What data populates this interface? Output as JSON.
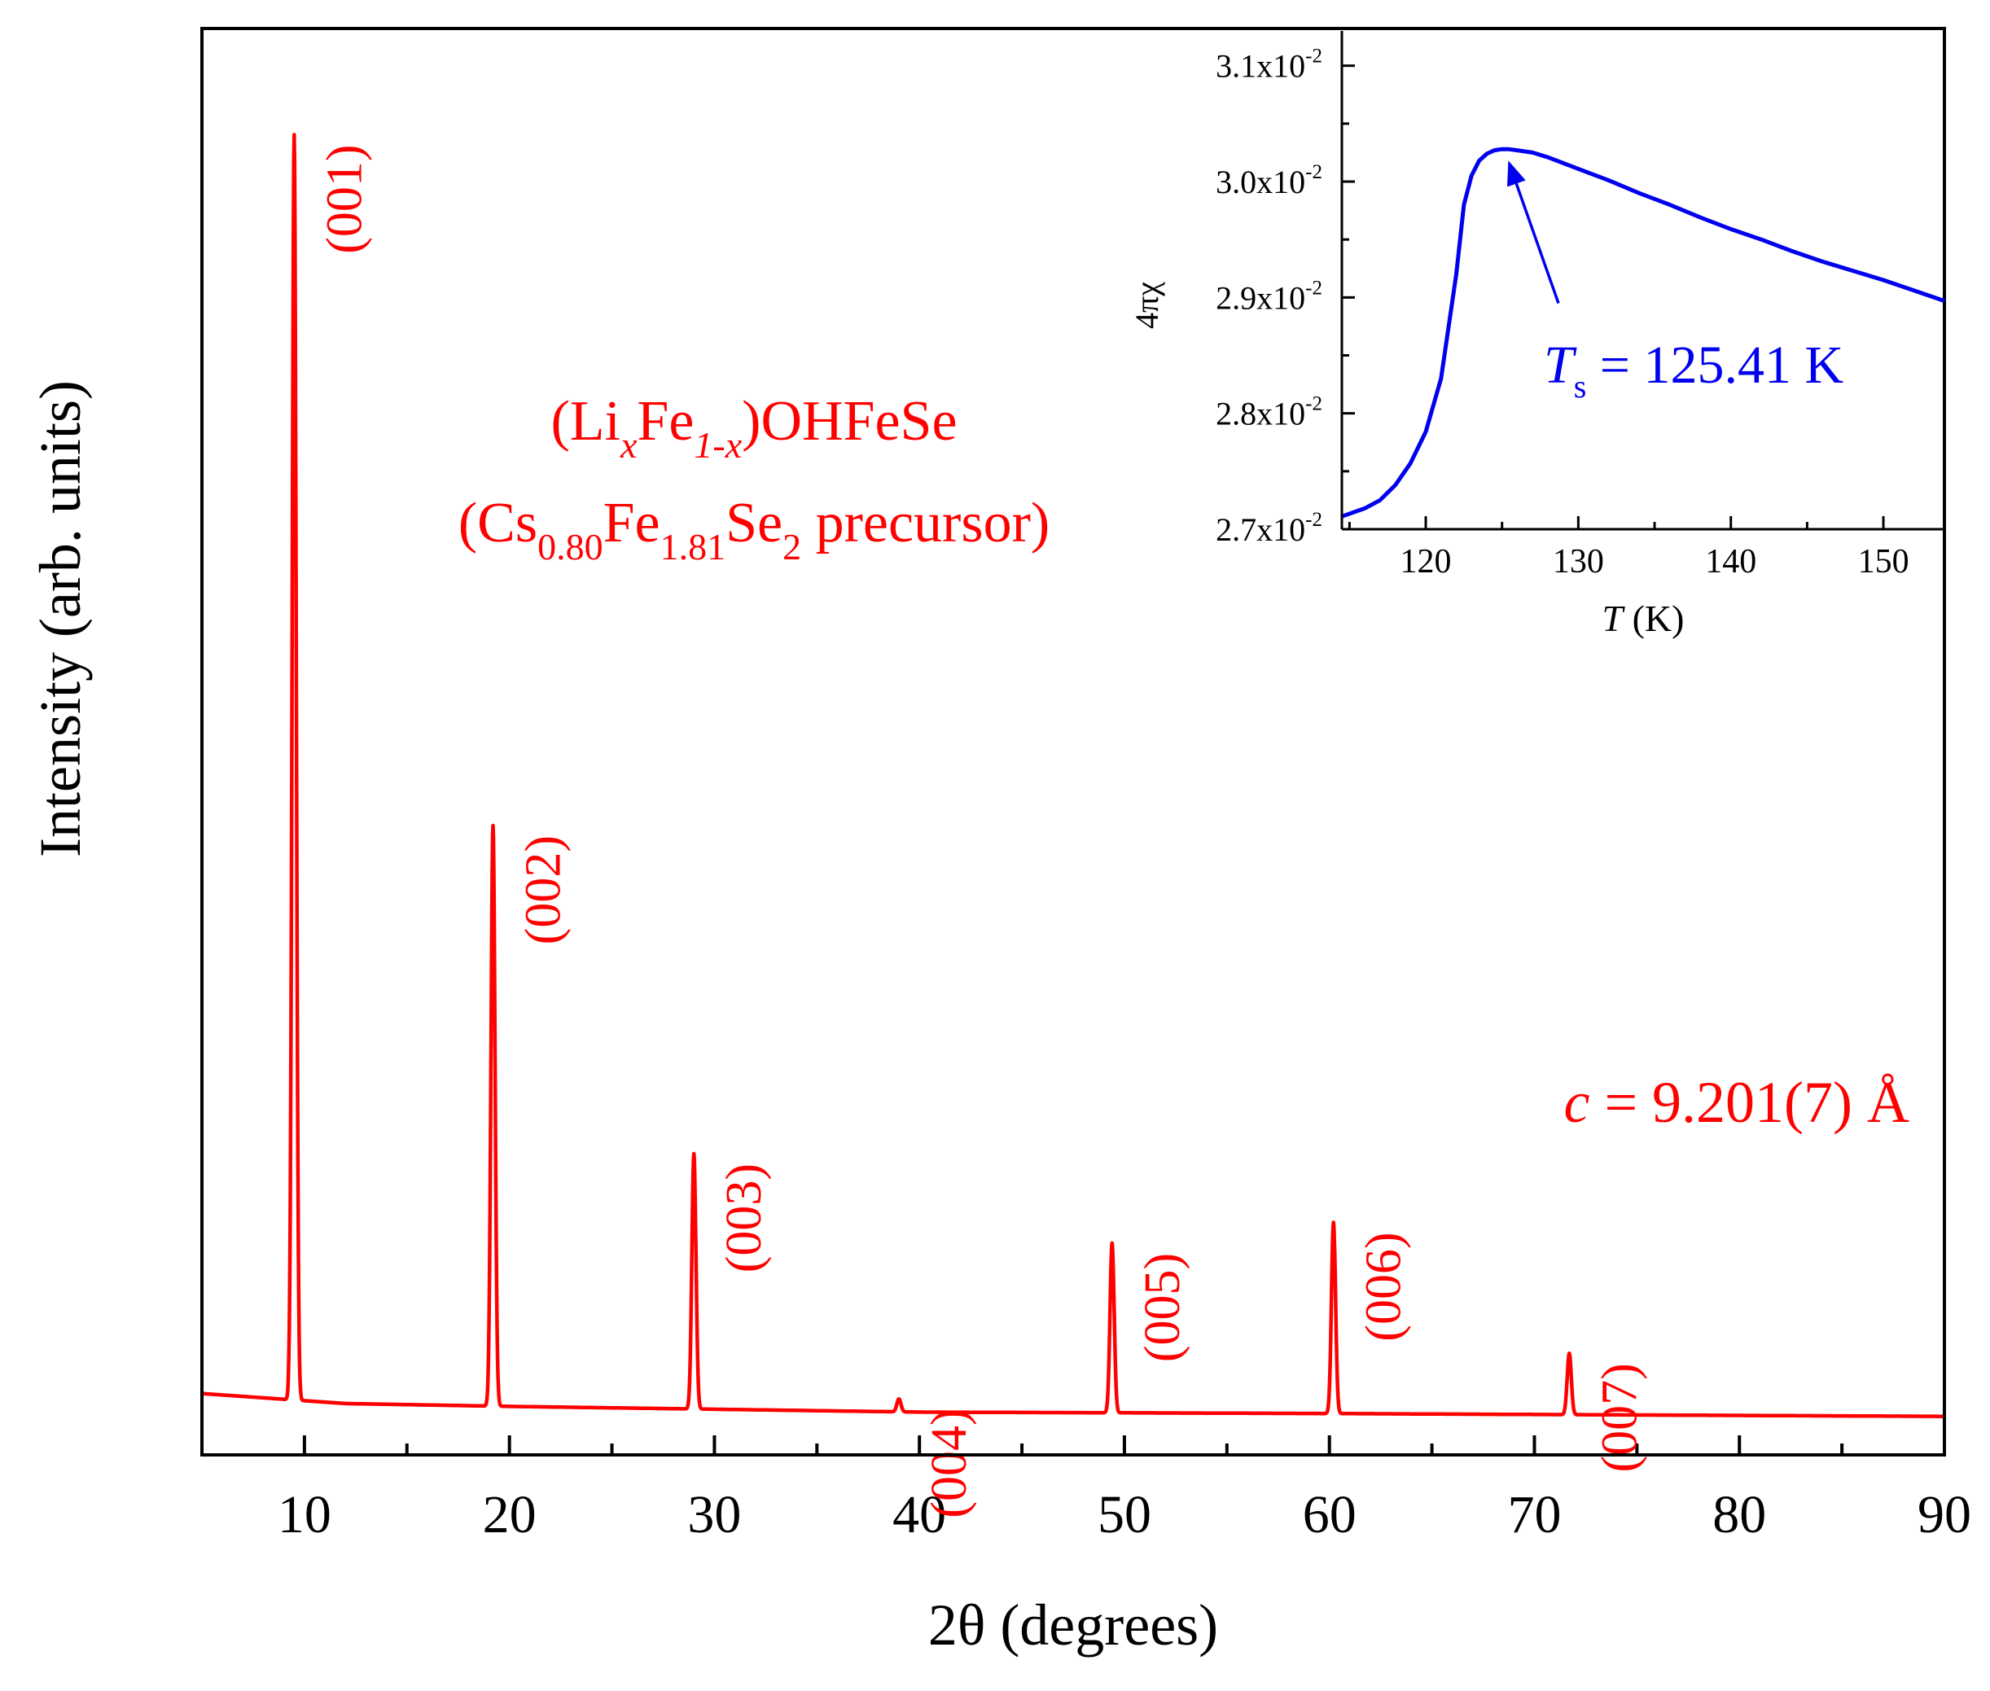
{
  "chart_data": [
    {
      "type": "line",
      "ylabel": "Intensity (arb. units)",
      "xlabel_prefix": "2θ",
      "xlabel_suffix": " (degrees)",
      "xlim": [
        5,
        90
      ],
      "ylim": [
        0,
        100
      ],
      "x_ticks": [
        10,
        20,
        30,
        40,
        50,
        60,
        70,
        80,
        90
      ],
      "x_ticks_minor": [
        5,
        15,
        25,
        35,
        45,
        55,
        65,
        75,
        85
      ],
      "y_ticks": [],
      "color": "#ff0000",
      "series": [
        {
          "name": "XRD pattern",
          "baseline": [
            [
              5,
              4.3
            ],
            [
              9,
              3.9
            ],
            [
              12,
              3.6
            ],
            [
              20,
              3.4
            ],
            [
              30,
              3.2
            ],
            [
              40,
              3.0
            ],
            [
              60,
              2.9
            ],
            [
              90,
              2.7
            ]
          ],
          "peaks": [
            {
              "hkl": "(001)",
              "two_theta": 9.5,
              "height": 88.7
            },
            {
              "hkl": "(002)",
              "two_theta": 19.2,
              "height": 40.7
            },
            {
              "hkl": "(003)",
              "two_theta": 29.0,
              "height": 17.9
            },
            {
              "hkl": "(004)",
              "two_theta": 39.0,
              "height": 0.9
            },
            {
              "hkl": "(005)",
              "two_theta": 49.4,
              "height": 11.9
            },
            {
              "hkl": "(006)",
              "two_theta": 60.2,
              "height": 13.4
            },
            {
              "hkl": "(007)",
              "two_theta": 71.7,
              "height": 4.3
            }
          ]
        }
      ],
      "annotations": {
        "compound_prefix": "(Li",
        "compound_sub1": "x",
        "compound_mid": "Fe",
        "compound_sub2": "1-x",
        "compound_suffix": ")OHFeSe",
        "precursor_prefix": "(Cs",
        "precursor_sub1": "0.80",
        "precursor_mid1": "Fe",
        "precursor_sub2": "1.81",
        "precursor_mid2": "Se",
        "precursor_sub3": "2",
        "precursor_suffix": " precursor)",
        "lattice_var": "c",
        "lattice_value": " = 9.201(7) Å"
      }
    },
    {
      "type": "line",
      "ylabel": "4πχ",
      "xlabel_var": "T",
      "xlabel_unit": " (K)",
      "xlim": [
        114.5,
        154
      ],
      "ylim": [
        0.027,
        0.0313
      ],
      "x_ticks": [
        120,
        130,
        140,
        150
      ],
      "y_ticks": [
        {
          "value": 0.027,
          "mantissa": "2.7x10",
          "exponent": "-2"
        },
        {
          "value": 0.028,
          "mantissa": "2.8x10",
          "exponent": "-2"
        },
        {
          "value": 0.029,
          "mantissa": "2.9x10",
          "exponent": "-2"
        },
        {
          "value": 0.03,
          "mantissa": "3.0x10",
          "exponent": "-2"
        },
        {
          "value": 0.031,
          "mantissa": "3.1x10",
          "exponent": "-2"
        }
      ],
      "color": "#0000ee",
      "series": [
        {
          "name": "susceptibility",
          "x": [
            114.5,
            116,
            117,
            118,
            119,
            120,
            121,
            122,
            122.5,
            123,
            123.5,
            124,
            124.5,
            125,
            125.41,
            126,
            127,
            128,
            130,
            132,
            134,
            136,
            138,
            140,
            142,
            144,
            146,
            148,
            150,
            152,
            154
          ],
          "y": [
            0.02711,
            0.02718,
            0.02725,
            0.02738,
            0.02757,
            0.02784,
            0.0283,
            0.0292,
            0.0298,
            0.03005,
            0.03018,
            0.03024,
            0.03027,
            0.03028,
            0.03028,
            0.03027,
            0.03025,
            0.03021,
            0.03011,
            0.03001,
            0.0299,
            0.0298,
            0.02969,
            0.02959,
            0.0295,
            0.0294,
            0.02931,
            0.02923,
            0.02915,
            0.02906,
            0.02897
          ]
        }
      ],
      "annotation": {
        "label_var": "T",
        "label_sub": "s",
        "label_value": " = 125.41 K",
        "arrow_target": {
          "x": 125.41,
          "y": 0.03028
        },
        "arrow_tail": {
          "x": 128.7,
          "y": 0.02895
        }
      }
    }
  ]
}
